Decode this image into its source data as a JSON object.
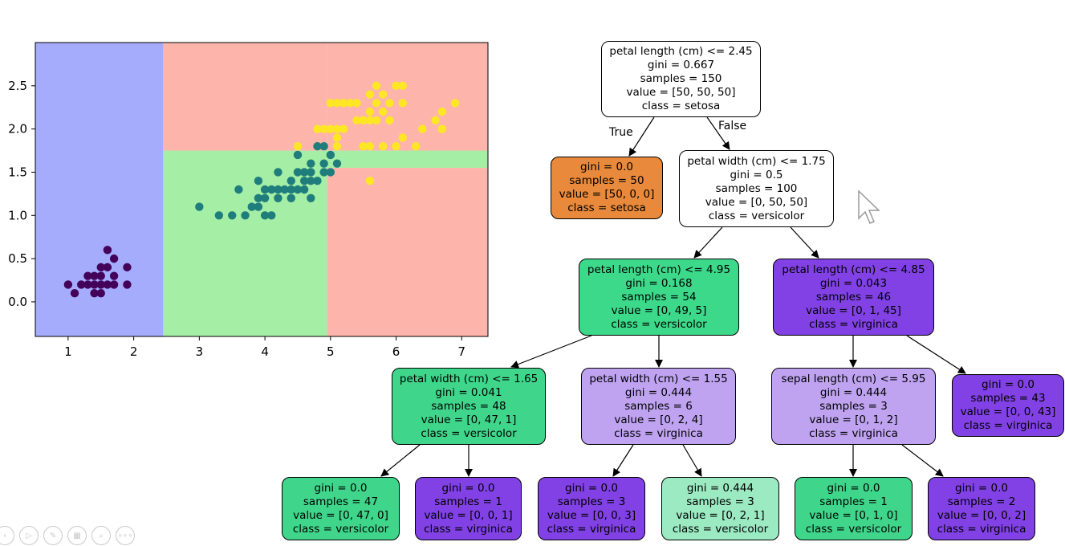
{
  "chart_data": {
    "type": "scatter",
    "title": "",
    "xlabel": "",
    "ylabel": "",
    "xlim": [
      0.5,
      7.4
    ],
    "ylim": [
      -0.4,
      3.0
    ],
    "xticks": [
      1,
      2,
      3,
      4,
      5,
      6,
      7
    ],
    "yticks": [
      0.0,
      0.5,
      1.0,
      1.5,
      2.0,
      2.5
    ],
    "xtick_labels": [
      "1",
      "2",
      "3",
      "4",
      "5",
      "6",
      "7"
    ],
    "ytick_labels": [
      "0.0",
      "0.5",
      "1.0",
      "1.5",
      "2.0",
      "2.5"
    ],
    "grid": false,
    "regions": [
      {
        "x": [
          0.5,
          2.45
        ],
        "y": [
          -0.4,
          3.0
        ],
        "class": "setosa",
        "color": "#a5acfc"
      },
      {
        "x": [
          2.45,
          4.95
        ],
        "y": [
          -0.4,
          1.75
        ],
        "class": "versicolor",
        "color": "#a4eea5"
      },
      {
        "x": [
          4.95,
          7.4
        ],
        "y": [
          1.55,
          1.75
        ],
        "class": "versicolor",
        "color": "#a4eea5"
      },
      {
        "x": [
          4.95,
          7.4
        ],
        "y": [
          -0.4,
          1.55
        ],
        "class": "virginica",
        "color": "#fdb4aa"
      },
      {
        "x": [
          2.45,
          4.95
        ],
        "y": [
          1.75,
          3.0
        ],
        "class": "virginica",
        "color": "#fdb4aa"
      },
      {
        "x": [
          4.95,
          7.4
        ],
        "y": [
          1.75,
          3.0
        ],
        "class": "virginica",
        "color": "#fdb4aa"
      }
    ],
    "series": [
      {
        "color": "#44015a",
        "points": [
          [
            1.0,
            0.2
          ],
          [
            1.1,
            0.1
          ],
          [
            1.2,
            0.2
          ],
          [
            1.3,
            0.2
          ],
          [
            1.3,
            0.3
          ],
          [
            1.4,
            0.1
          ],
          [
            1.4,
            0.2
          ],
          [
            1.4,
            0.3
          ],
          [
            1.5,
            0.1
          ],
          [
            1.5,
            0.2
          ],
          [
            1.5,
            0.3
          ],
          [
            1.5,
            0.4
          ],
          [
            1.6,
            0.2
          ],
          [
            1.6,
            0.4
          ],
          [
            1.6,
            0.6
          ],
          [
            1.7,
            0.2
          ],
          [
            1.7,
            0.3
          ],
          [
            1.7,
            0.5
          ],
          [
            1.9,
            0.2
          ],
          [
            1.9,
            0.4
          ]
        ]
      },
      {
        "color": "#1f7d7b",
        "points": [
          [
            3.0,
            1.1
          ],
          [
            3.3,
            1.0
          ],
          [
            3.5,
            1.0
          ],
          [
            3.6,
            1.3
          ],
          [
            3.7,
            1.0
          ],
          [
            3.8,
            1.1
          ],
          [
            3.9,
            1.1
          ],
          [
            3.9,
            1.2
          ],
          [
            3.9,
            1.4
          ],
          [
            4.0,
            1.0
          ],
          [
            4.0,
            1.2
          ],
          [
            4.0,
            1.3
          ],
          [
            4.1,
            1.0
          ],
          [
            4.1,
            1.3
          ],
          [
            4.2,
            1.2
          ],
          [
            4.2,
            1.3
          ],
          [
            4.2,
            1.5
          ],
          [
            4.3,
            1.3
          ],
          [
            4.4,
            1.2
          ],
          [
            4.4,
            1.3
          ],
          [
            4.4,
            1.4
          ],
          [
            4.5,
            1.3
          ],
          [
            4.5,
            1.5
          ],
          [
            4.5,
            1.7
          ],
          [
            4.6,
            1.3
          ],
          [
            4.6,
            1.4
          ],
          [
            4.6,
            1.5
          ],
          [
            4.7,
            1.2
          ],
          [
            4.7,
            1.4
          ],
          [
            4.7,
            1.5
          ],
          [
            4.7,
            1.6
          ],
          [
            4.8,
            1.4
          ],
          [
            4.8,
            1.8
          ],
          [
            4.9,
            1.5
          ],
          [
            4.9,
            1.6
          ],
          [
            4.9,
            1.8
          ],
          [
            5.0,
            1.5
          ],
          [
            5.0,
            1.7
          ],
          [
            5.1,
            1.6
          ]
        ]
      },
      {
        "color": "#fde725",
        "points": [
          [
            4.5,
            1.8
          ],
          [
            4.8,
            2.0
          ],
          [
            4.9,
            2.0
          ],
          [
            5.0,
            2.0
          ],
          [
            5.0,
            2.3
          ],
          [
            5.1,
            1.8
          ],
          [
            5.1,
            1.9
          ],
          [
            5.1,
            2.0
          ],
          [
            5.1,
            2.3
          ],
          [
            5.2,
            2.0
          ],
          [
            5.2,
            2.3
          ],
          [
            5.3,
            2.3
          ],
          [
            5.4,
            2.1
          ],
          [
            5.4,
            2.3
          ],
          [
            5.5,
            2.1
          ],
          [
            5.5,
            1.8
          ],
          [
            5.6,
            1.8
          ],
          [
            5.6,
            2.1
          ],
          [
            5.6,
            2.2
          ],
          [
            5.6,
            2.4
          ],
          [
            5.6,
            1.4
          ],
          [
            5.7,
            2.1
          ],
          [
            5.7,
            2.3
          ],
          [
            5.7,
            2.5
          ],
          [
            5.8,
            1.8
          ],
          [
            5.8,
            2.2
          ],
          [
            5.8,
            2.4
          ],
          [
            5.9,
            2.1
          ],
          [
            5.9,
            2.3
          ],
          [
            6.0,
            1.8
          ],
          [
            6.0,
            2.5
          ],
          [
            6.1,
            1.9
          ],
          [
            6.1,
            2.3
          ],
          [
            6.1,
            2.5
          ],
          [
            6.3,
            1.8
          ],
          [
            6.4,
            2.0
          ],
          [
            6.6,
            2.1
          ],
          [
            6.7,
            2.0
          ],
          [
            6.7,
            2.2
          ],
          [
            6.9,
            2.3
          ]
        ]
      }
    ]
  },
  "tree": {
    "colors": {
      "white": "#ffffff",
      "setosa": "#e8893b",
      "versicolor": "#3cd98a",
      "versicolor_mid": "#3fd68b",
      "versicolor_light": "#9beac2",
      "virginica": "#8141e5",
      "virginica_light": "#bfa3f1"
    },
    "edge_labels": {
      "true_label": "True",
      "false_label": "False"
    },
    "nodes": {
      "root": [
        "petal length (cm) <= 2.45",
        "gini = 0.667",
        "samples = 150",
        "value = [50, 50, 50]",
        "class = setosa"
      ],
      "n1": [
        "gini = 0.0",
        "samples = 50",
        "value = [50, 0, 0]",
        "class = setosa"
      ],
      "n2": [
        "petal width (cm) <= 1.75",
        "gini = 0.5",
        "samples = 100",
        "value = [0, 50, 50]",
        "class = versicolor"
      ],
      "n3": [
        "petal length (cm) <= 4.95",
        "gini = 0.168",
        "samples = 54",
        "value = [0, 49, 5]",
        "class = versicolor"
      ],
      "n4": [
        "petal length (cm) <= 4.85",
        "gini = 0.043",
        "samples = 46",
        "value = [0, 1, 45]",
        "class = virginica"
      ],
      "n5": [
        "petal width (cm) <= 1.65",
        "gini = 0.041",
        "samples = 48",
        "value = [0, 47, 1]",
        "class = versicolor"
      ],
      "n6": [
        "petal width (cm) <= 1.55",
        "gini = 0.444",
        "samples = 6",
        "value = [0, 2, 4]",
        "class = virginica"
      ],
      "n7": [
        "sepal length (cm) <= 5.95",
        "gini = 0.444",
        "samples = 3",
        "value = [0, 1, 2]",
        "class = virginica"
      ],
      "n8": [
        "gini = 0.0",
        "samples = 43",
        "value = [0, 0, 43]",
        "class = virginica"
      ],
      "n9": [
        "gini = 0.0",
        "samples = 47",
        "value = [0, 47, 0]",
        "class = versicolor"
      ],
      "n10": [
        "gini = 0.0",
        "samples = 1",
        "value = [0, 0, 1]",
        "class = virginica"
      ],
      "n11": [
        "gini = 0.0",
        "samples = 3",
        "value = [0, 0, 3]",
        "class = virginica"
      ],
      "n12": [
        "gini = 0.444",
        "samples = 3",
        "value = [0, 2, 1]",
        "class = versicolor"
      ],
      "n13": [
        "gini = 0.0",
        "samples = 1",
        "value = [0, 1, 0]",
        "class = versicolor"
      ],
      "n14": [
        "gini = 0.0",
        "samples = 2",
        "value = [0, 0, 2]",
        "class = virginica"
      ]
    }
  },
  "toolbar": {
    "icons": [
      "previous-icon",
      "play-icon",
      "pen-icon",
      "slides-icon",
      "zoom-icon",
      "more-icon"
    ],
    "glyphs": [
      "‹",
      "▷",
      "✎",
      "▦",
      "⌕",
      "∘∘∘"
    ]
  }
}
